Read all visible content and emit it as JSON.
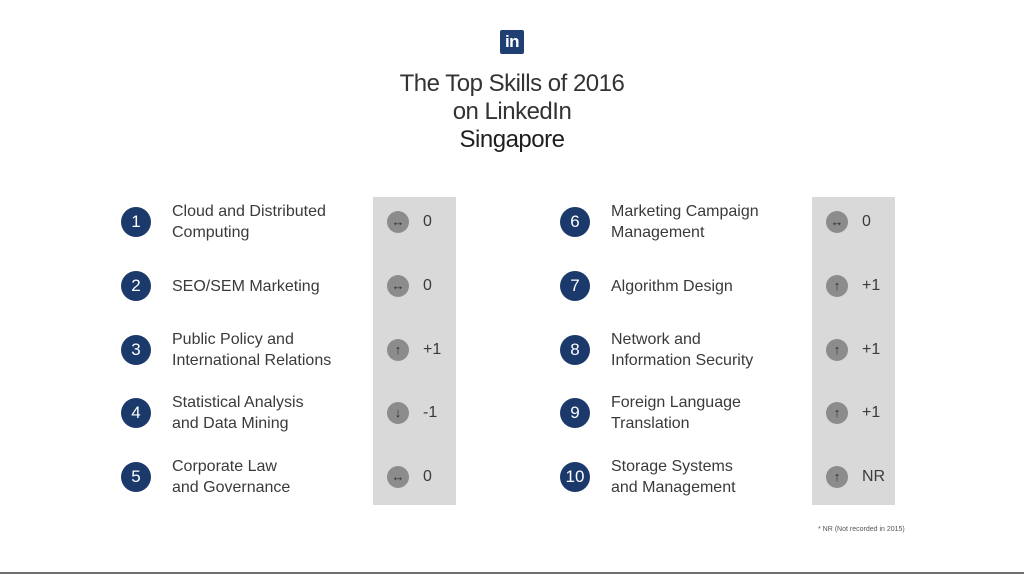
{
  "logo_text": "in",
  "title": {
    "line1": "The Top Skills of 2016",
    "line2": "on LinkedIn",
    "line3": "Singapore"
  },
  "skills": [
    {
      "rank": "1",
      "name": "Cloud and Distributed\nComputing",
      "icon": "left-right-arrow-icon",
      "glyph": "↔",
      "change": "0"
    },
    {
      "rank": "2",
      "name": "SEO/SEM Marketing",
      "icon": "left-right-arrow-icon",
      "glyph": "↔",
      "change": "0"
    },
    {
      "rank": "3",
      "name": "Public Policy and\nInternational Relations",
      "icon": "up-arrow-icon",
      "glyph": "↑",
      "change": "+1"
    },
    {
      "rank": "4",
      "name": "Statistical Analysis\nand Data Mining",
      "icon": "down-arrow-icon",
      "glyph": "↓",
      "change": "-1"
    },
    {
      "rank": "5",
      "name": "Corporate Law\nand Governance",
      "icon": "left-right-arrow-icon",
      "glyph": "↔",
      "change": "0"
    },
    {
      "rank": "6",
      "name": "Marketing Campaign\nManagement",
      "icon": "left-right-arrow-icon",
      "glyph": "↔",
      "change": "0"
    },
    {
      "rank": "7",
      "name": "Algorithm Design",
      "icon": "up-arrow-icon",
      "glyph": "↑",
      "change": "+1"
    },
    {
      "rank": "8",
      "name": "Network and\nInformation Security",
      "icon": "up-arrow-icon",
      "glyph": "↑",
      "change": "+1"
    },
    {
      "rank": "9",
      "name": "Foreign Language\nTranslation",
      "icon": "up-arrow-icon",
      "glyph": "↑",
      "change": "+1"
    },
    {
      "rank": "10",
      "name": "Storage Systems\nand Management",
      "icon": "up-arrow-icon",
      "glyph": "↑",
      "change": "NR"
    }
  ],
  "footnote": "* NR (Not recorded in 2015)",
  "colors": {
    "rank_circle": "#1b3a6b",
    "logo": "#1f3f72",
    "column_bg": "#d9d9d9",
    "arrow_circle": "#8c8c8c"
  }
}
